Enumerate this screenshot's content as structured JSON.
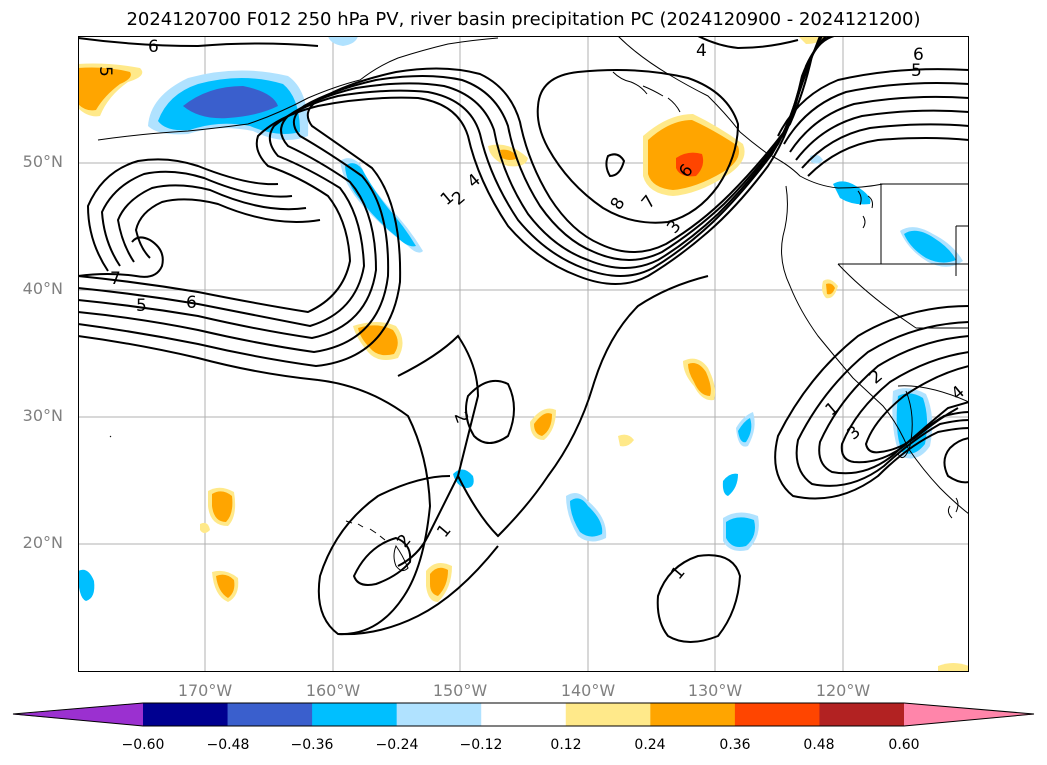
{
  "title": "2024120700 F012 250 hPa PV, river basin precipitation PC (2024120900 - 2024121200)",
  "lat_labels": [
    "50°N",
    "40°N",
    "30°N",
    "20°N"
  ],
  "lon_labels": [
    "170°W",
    "160°W",
    "150°W",
    "140°W",
    "130°W",
    "120°W"
  ],
  "contour_labels": [
    "6",
    "4",
    "6",
    "5",
    "5",
    "7",
    "5",
    "6",
    "2",
    "4",
    "1",
    "8",
    "7",
    "3",
    "6",
    "2",
    "2",
    "1",
    "1",
    "1",
    "2",
    "3",
    "4"
  ],
  "colorbar": {
    "ticks": [
      "−0.60",
      "−0.48",
      "−0.36",
      "−0.24",
      "−0.12",
      "0.12",
      "0.24",
      "0.36",
      "0.48",
      "0.60"
    ],
    "colors": [
      "#9b30d0",
      "#000090",
      "#3a5fcd",
      "#00bfff",
      "#b0e2ff",
      "#ffffff",
      "#ffe98a",
      "#ffa500",
      "#ff4500",
      "#b22222",
      "#ff85aa"
    ]
  }
}
